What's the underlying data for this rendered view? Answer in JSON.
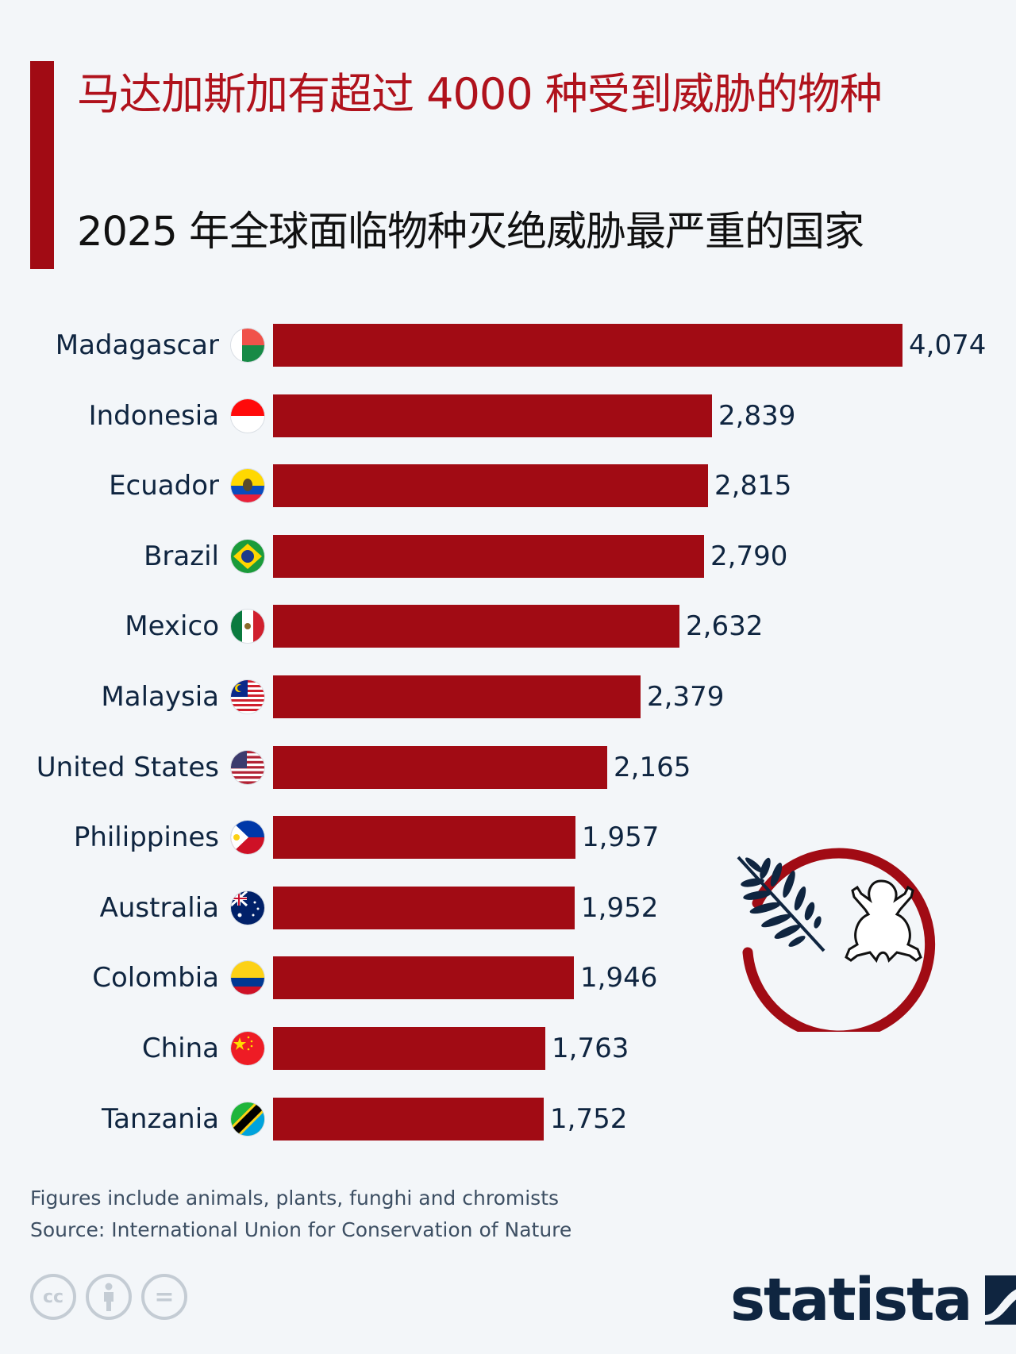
{
  "header": {
    "title": "马达加斯加有超过 4000 种受到威胁的物种",
    "subtitle": "2025 年全球面临物种灭绝威胁最严重的国家",
    "accent_color": "#a10b14"
  },
  "rows": [
    {
      "country": "Madagascar",
      "value": 4074,
      "value_label": "4,074",
      "flag": "madagascar-flag"
    },
    {
      "country": "Indonesia",
      "value": 2839,
      "value_label": "2,839",
      "flag": "indonesia-flag"
    },
    {
      "country": "Ecuador",
      "value": 2815,
      "value_label": "2,815",
      "flag": "ecuador-flag"
    },
    {
      "country": "Brazil",
      "value": 2790,
      "value_label": "2,790",
      "flag": "brazil-flag"
    },
    {
      "country": "Mexico",
      "value": 2632,
      "value_label": "2,632",
      "flag": "mexico-flag"
    },
    {
      "country": "Malaysia",
      "value": 2379,
      "value_label": "2,379",
      "flag": "malaysia-flag"
    },
    {
      "country": "United States",
      "value": 2165,
      "value_label": "2,165",
      "flag": "usa-flag"
    },
    {
      "country": "Philippines",
      "value": 1957,
      "value_label": "1,957",
      "flag": "philippines-flag"
    },
    {
      "country": "Australia",
      "value": 1952,
      "value_label": "1,952",
      "flag": "australia-flag"
    },
    {
      "country": "Colombia",
      "value": 1946,
      "value_label": "1,946",
      "flag": "colombia-flag"
    },
    {
      "country": "China",
      "value": 1763,
      "value_label": "1,763",
      "flag": "china-flag"
    },
    {
      "country": "Tanzania",
      "value": 1752,
      "value_label": "1,752",
      "flag": "tanzania-flag"
    }
  ],
  "footer": {
    "note": "Figures include animals, plants, funghi and chromists",
    "source": "Source: International Union for Conservation of Nature",
    "license_icons": [
      "cc-icon",
      "by-icon",
      "nd-icon"
    ],
    "cc_label": "cc",
    "nd_label": "=",
    "brand": "statista"
  },
  "chart_data": {
    "type": "bar",
    "orientation": "horizontal",
    "title": "马达加斯加有超过 4000 种受到威胁的物种",
    "subtitle": "2025 年全球面临物种灭绝威胁最严重的国家",
    "categories": [
      "Madagascar",
      "Indonesia",
      "Ecuador",
      "Brazil",
      "Mexico",
      "Malaysia",
      "United States",
      "Philippines",
      "Australia",
      "Colombia",
      "China",
      "Tanzania"
    ],
    "values": [
      4074,
      2839,
      2815,
      2790,
      2632,
      2379,
      2165,
      1957,
      1952,
      1946,
      1763,
      1752
    ],
    "xlabel": "",
    "ylabel": "",
    "xlim": [
      0,
      4074
    ],
    "grid": false,
    "legend": null,
    "data_labels": true,
    "bar_color": "#a10b14",
    "annotations": [
      "Figures include animals, plants, funghi and chromists",
      "Source: International Union for Conservation of Nature"
    ]
  }
}
